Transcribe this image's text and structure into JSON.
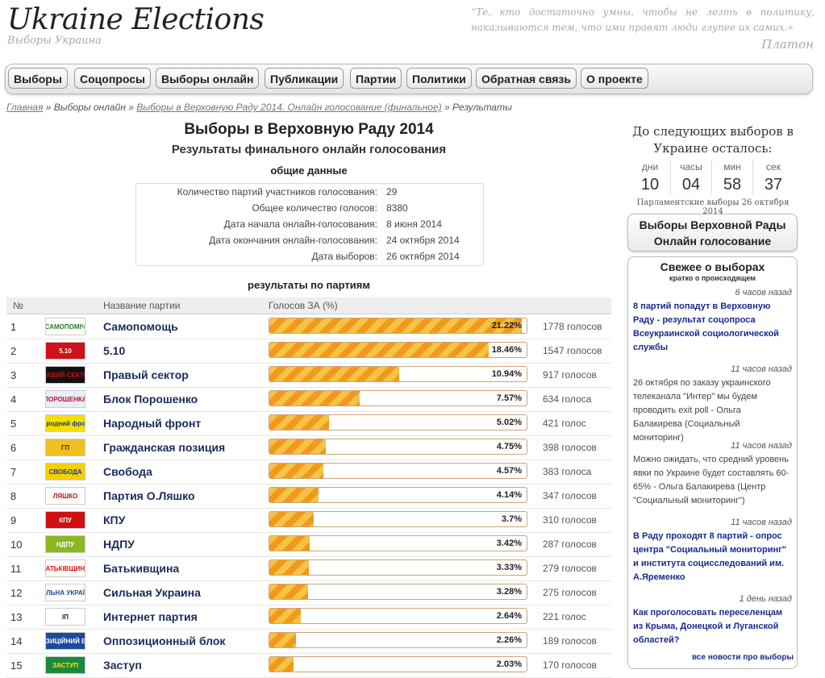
{
  "header": {
    "logo": "Ukraine Elections",
    "logo_sub": "Выборы Украина",
    "quote": "“Те, кто достаточно умны, чтобы не лезть в политику, наказываются тем, что ими правят люди глупее их самих.»",
    "quote_author": "Платон"
  },
  "nav": [
    "Выборы",
    "Соцопросы",
    "Выборы онлайн",
    "Публикации",
    "Партии",
    "Политики",
    "Обратная связь",
    "О проекте"
  ],
  "breadcrumb": {
    "home": "Главная",
    "sep": "»",
    "level1": "Выборы онлайн",
    "level2": "Выборы в Верховную Раду 2014. Онлайн голосование (финальное)",
    "current": "Результаты"
  },
  "main": {
    "title": "Выборы в Верховную Раду 2014",
    "subtitle": "Результаты финального онлайн голосования",
    "general_heading": "общие данные",
    "general": [
      {
        "label": "Количество партий участников голосования:",
        "value": "29"
      },
      {
        "label": "Общее количество голосов:",
        "value": "8380"
      },
      {
        "label": "Дата начала онлайн-голосования:",
        "value": "8 июня 2014"
      },
      {
        "label": "Дата окончания онлайн-голосования:",
        "value": "24 октября 2014"
      },
      {
        "label": "Дата выборов:",
        "value": "26 октября 2014"
      }
    ],
    "results_heading": "результаты по партиям",
    "columns": {
      "num": "№",
      "name": "Название партии",
      "votes": "Голосов ЗА (%)"
    },
    "rows": [
      {
        "num": "1",
        "name": "Самопомощь",
        "pct": 21.22,
        "pct_label": "21.22%",
        "votes": "1778 голосов",
        "logo": "САМОПОМІЧ",
        "logo_bg": "#fff",
        "logo_fg": "#2a7a2a"
      },
      {
        "num": "2",
        "name": "5.10",
        "pct": 18.46,
        "pct_label": "18.46%",
        "votes": "1547 голосов",
        "logo": "5.10",
        "logo_bg": "#d0101a",
        "logo_fg": "#fff"
      },
      {
        "num": "3",
        "name": "Правый сектор",
        "pct": 10.94,
        "pct_label": "10.94%",
        "votes": "917 голосов",
        "logo": "ПРАВИЙ СЕКТОР",
        "logo_bg": "#111",
        "logo_fg": "#d01010"
      },
      {
        "num": "4",
        "name": "Блок Порошенко",
        "pct": 7.57,
        "pct_label": "7.57%",
        "votes": "634 голоса",
        "logo": "ПОРОШЕНКА",
        "logo_bg": "#e8eefc",
        "logo_fg": "#c01020"
      },
      {
        "num": "5",
        "name": "Народный фронт",
        "pct": 5.02,
        "pct_label": "5.02%",
        "votes": "421 голос",
        "logo": "Народний фронт",
        "logo_bg": "#f5e000",
        "logo_fg": "#1a3a8a"
      },
      {
        "num": "6",
        "name": "Гражданская позиция",
        "pct": 4.75,
        "pct_label": "4.75%",
        "votes": "398 голосов",
        "logo": "ГП",
        "logo_bg": "#f0c020",
        "logo_fg": "#333"
      },
      {
        "num": "7",
        "name": "Свобода",
        "pct": 4.57,
        "pct_label": "4.57%",
        "votes": "383 голоса",
        "logo": "СВОБОДА",
        "logo_bg": "#f5d000",
        "logo_fg": "#1a3a8a"
      },
      {
        "num": "8",
        "name": "Партия О.Ляшко",
        "pct": 4.14,
        "pct_label": "4.14%",
        "votes": "347 голосов",
        "logo": "ЛЯШКО",
        "logo_bg": "#fff",
        "logo_fg": "#c01010"
      },
      {
        "num": "9",
        "name": "КПУ",
        "pct": 3.7,
        "pct_label": "3.7%",
        "votes": "310 голосов",
        "logo": "КПУ",
        "logo_bg": "#d01010",
        "logo_fg": "#fff"
      },
      {
        "num": "10",
        "name": "НДПУ",
        "pct": 3.42,
        "pct_label": "3.42%",
        "votes": "287 голосов",
        "logo": "НДПУ",
        "logo_bg": "#8ab820",
        "logo_fg": "#fff"
      },
      {
        "num": "11",
        "name": "Батькивщина",
        "pct": 3.33,
        "pct_label": "3.33%",
        "votes": "279 голосов",
        "logo": "БАТЬКІВЩИНА",
        "logo_bg": "#fff",
        "logo_fg": "#e01010"
      },
      {
        "num": "12",
        "name": "Сильная Украина",
        "pct": 3.28,
        "pct_label": "3.28%",
        "votes": "275 голосов",
        "logo": "СИЛЬНА УКРАЇНА",
        "logo_bg": "#fff",
        "logo_fg": "#1a4a9a"
      },
      {
        "num": "13",
        "name": "Интернет партия",
        "pct": 2.64,
        "pct_label": "2.64%",
        "votes": "221 голос",
        "logo": "ІП",
        "logo_bg": "#fff",
        "logo_fg": "#222"
      },
      {
        "num": "14",
        "name": "Оппозиционный блок",
        "pct": 2.26,
        "pct_label": "2.26%",
        "votes": "189 голосов",
        "logo": "ОПОЗИЦІЙНИЙ БЛОК",
        "logo_bg": "#1a4aa0",
        "logo_fg": "#fff"
      },
      {
        "num": "15",
        "name": "Заступ",
        "pct": 2.03,
        "pct_label": "2.03%",
        "votes": "170 голосов",
        "logo": "ЗАСТУП",
        "logo_bg": "#1a8a3a",
        "logo_fg": "#ffe000"
      }
    ]
  },
  "sidebar": {
    "countdown_head": "До следующих выборов в Украине осталось:",
    "countdown": [
      {
        "label": "дни",
        "value": "10"
      },
      {
        "label": "часы",
        "value": "04"
      },
      {
        "label": "мин",
        "value": "58"
      },
      {
        "label": "сек",
        "value": "37"
      }
    ],
    "parl_date": "Парламентские выборы 26 октября 2014",
    "button": "Выборы Верховной Рады Онлайн голосование",
    "news_title": "Свежее о выборах",
    "news_sub": "кратко о происходящем",
    "news": [
      {
        "time": "6 часов назад",
        "text": "8 партий попадут в Верховную Раду - результат соцопроса Всеукраинской социологической службы",
        "link": true
      },
      {
        "time": "11 часов назад",
        "text": "26 октября по заказу украинского телеканала \"Интер\" мы будем проводить exit poll - Ольга Балакирева (Социальный мониторинг)",
        "link": false
      },
      {
        "time": "11 часов назад",
        "text": "Можно ожидать, что средний уровень явки по Украине будет составлять 60-65% - Ольга Балакирева (Центр \"Социальный мониторинг\")",
        "link": false
      },
      {
        "time": "11 часов назад",
        "text": "В Раду проходят 8 партий - опрос центра \"Социальный мониторинг\" и института социсследований им. А.Яременко",
        "link": true
      },
      {
        "time": "1 день назад",
        "text": "Как проголосовать переселенцам из Крыма, Донецкой и Луганской областей?",
        "link": true
      }
    ],
    "news_all": "все новости про выборы"
  }
}
